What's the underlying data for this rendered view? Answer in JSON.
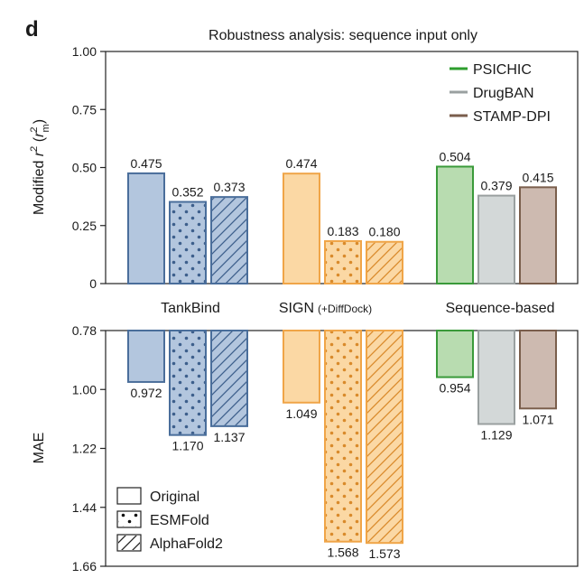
{
  "panel_label": "d",
  "chart_data": [
    {
      "type": "bar",
      "title": "Robustness analysis: sequence input only",
      "ylabel": "Modified r² (r²m)",
      "ylim": [
        0,
        1.0
      ],
      "yticks": [
        "0",
        "0.25",
        "0.50",
        "0.75",
        "1.00"
      ],
      "groups": [
        {
          "name": "TankBind",
          "name_suffix": "",
          "color": "#4a6e9b",
          "fill": "#b3c6de"
        },
        {
          "name": "SIGN",
          "name_suffix": "(+DiffDock)",
          "color": "#f0a548",
          "fill": "#fbd8a4"
        },
        {
          "name": "Sequence-based",
          "name_suffix": "",
          "color": null,
          "fill": null
        }
      ],
      "bars": [
        {
          "group": 0,
          "kind": "Original",
          "value": 0.475,
          "label": "0.475"
        },
        {
          "group": 0,
          "kind": "ESMFold",
          "value": 0.352,
          "label": "0.352"
        },
        {
          "group": 0,
          "kind": "AlphaFold2",
          "value": 0.373,
          "label": "0.373"
        },
        {
          "group": 1,
          "kind": "Original",
          "value": 0.474,
          "label": "0.474"
        },
        {
          "group": 1,
          "kind": "ESMFold",
          "value": 0.183,
          "label": "0.183"
        },
        {
          "group": 1,
          "kind": "AlphaFold2",
          "value": 0.18,
          "label": "0.180"
        },
        {
          "group": 2,
          "kind": "PSICHIC",
          "value": 0.504,
          "label": "0.504",
          "color": "#3a9a3a",
          "fill": "#b8dcb0"
        },
        {
          "group": 2,
          "kind": "DrugBAN",
          "value": 0.379,
          "label": "0.379",
          "color": "#9aa0a0",
          "fill": "#d3d8d8"
        },
        {
          "group": 2,
          "kind": "STAMP-DPI",
          "value": 0.415,
          "label": "0.415",
          "color": "#7a5e4c",
          "fill": "#cdbab0"
        }
      ],
      "legend": {
        "position": "top-right",
        "entries": [
          {
            "name": "PSICHIC",
            "color": "#2e9e2e"
          },
          {
            "name": "DrugBAN",
            "color": "#9aa0a0"
          },
          {
            "name": "STAMP-DPI",
            "color": "#7a5e4c"
          }
        ]
      }
    },
    {
      "type": "bar",
      "ylabel": "MAE",
      "ylim": [
        0.78,
        1.66
      ],
      "inverted": true,
      "yticks": [
        "0.78",
        "1.00",
        "1.22",
        "1.44",
        "1.66"
      ],
      "bars": [
        {
          "group": 0,
          "kind": "Original",
          "value": 0.972,
          "label": "0.972"
        },
        {
          "group": 0,
          "kind": "ESMFold",
          "value": 1.17,
          "label": "1.170"
        },
        {
          "group": 0,
          "kind": "AlphaFold2",
          "value": 1.137,
          "label": "1.137"
        },
        {
          "group": 1,
          "kind": "Original",
          "value": 1.049,
          "label": "1.049"
        },
        {
          "group": 1,
          "kind": "ESMFold",
          "value": 1.568,
          "label": "1.568"
        },
        {
          "group": 1,
          "kind": "AlphaFold2",
          "value": 1.573,
          "label": "1.573"
        },
        {
          "group": 2,
          "kind": "PSICHIC",
          "value": 0.954,
          "label": "0.954"
        },
        {
          "group": 2,
          "kind": "DrugBAN",
          "value": 1.129,
          "label": "1.129"
        },
        {
          "group": 2,
          "kind": "STAMP-DPI",
          "value": 1.071,
          "label": "1.071"
        }
      ],
      "legend": {
        "position": "bottom-left",
        "entries": [
          {
            "name": "Original",
            "pattern": "none"
          },
          {
            "name": "ESMFold",
            "pattern": "dots"
          },
          {
            "name": "AlphaFold2",
            "pattern": "hatch"
          }
        ]
      }
    }
  ]
}
